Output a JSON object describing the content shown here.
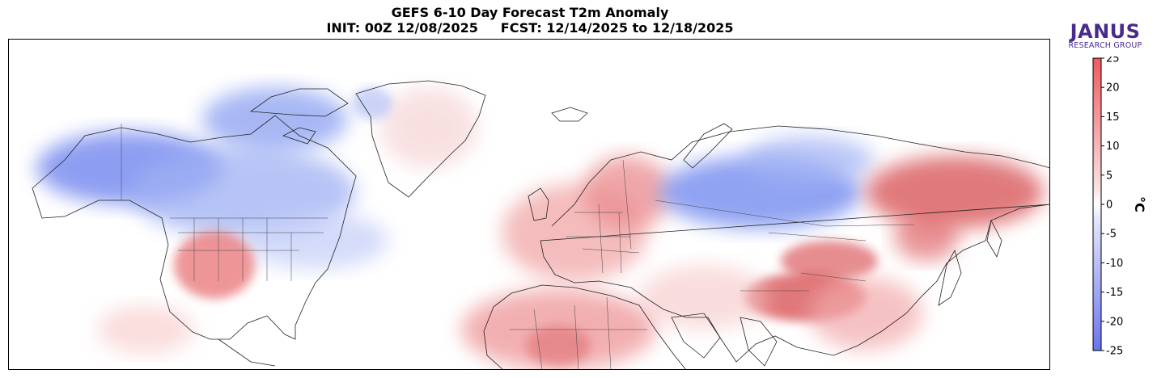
{
  "title": {
    "line1": "GEFS 6-10 Day Forecast T2m Anomaly",
    "line2": "INIT: 00Z 12/08/2025     FCST: 12/14/2025 to 12/18/2025"
  },
  "logo": {
    "main": "JANUS",
    "sub": "RESEARCH GROUP"
  },
  "colorbar": {
    "label": "°C",
    "min": -25,
    "max": 25,
    "ticks": [
      "25",
      "20",
      "15",
      "10",
      "5",
      "0",
      "-5",
      "-10",
      "-15",
      "-20",
      "-25"
    ],
    "tick_values": [
      25,
      20,
      15,
      10,
      5,
      0,
      -5,
      -10,
      -15,
      -20,
      -25
    ],
    "colors": {
      "cold": "#6b73f0",
      "neutral": "#ffffff",
      "warm": "#f0595e"
    }
  },
  "map": {
    "anomalies": [
      {
        "region": "Alaska / NW Canada",
        "value": -10
      },
      {
        "region": "Central Canada",
        "value": -7
      },
      {
        "region": "Canadian Arctic Archipelago",
        "value": -8
      },
      {
        "region": "Eastern Canada / Great Lakes",
        "value": -4
      },
      {
        "region": "US Southwest",
        "value": 8
      },
      {
        "region": "Greenland",
        "value": 3
      },
      {
        "region": "Europe",
        "value": 5
      },
      {
        "region": "Scandinavia / NW Russia",
        "value": 7
      },
      {
        "region": "Western Siberia",
        "value": -10
      },
      {
        "region": "Eastern Siberia",
        "value": 13
      },
      {
        "region": "Mongolia",
        "value": 10
      },
      {
        "region": "Tibetan Plateau",
        "value": 12
      },
      {
        "region": "North Africa / Sahara",
        "value": 7
      },
      {
        "region": "Middle East",
        "value": 3
      },
      {
        "region": "China",
        "value": 5
      }
    ]
  }
}
